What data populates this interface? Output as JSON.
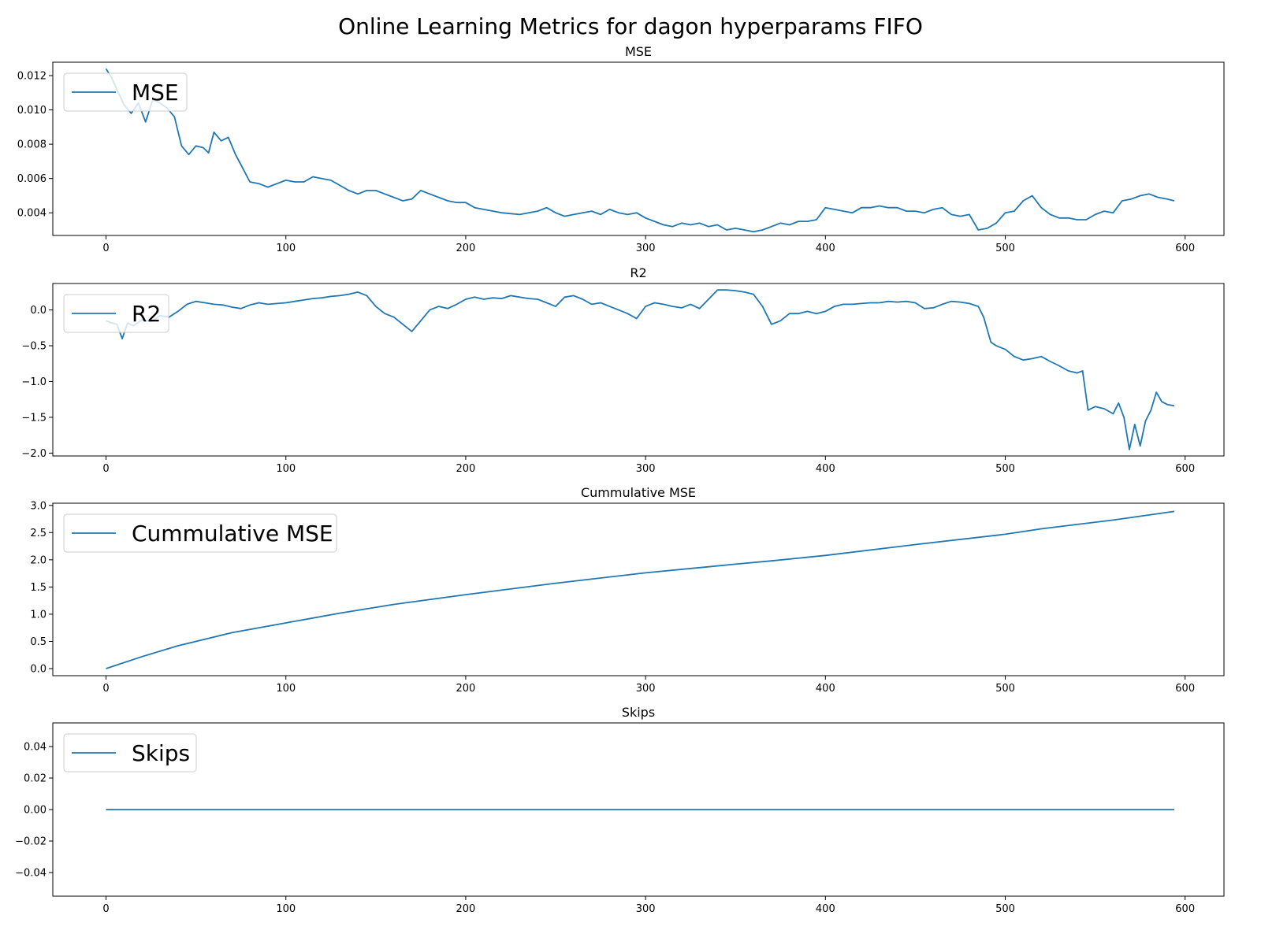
{
  "figure": {
    "title": "Online Learning Metrics for dagon hyperparams FIFO",
    "line_color": "#1f77b4",
    "x_ticks": [
      0,
      100,
      200,
      300,
      400,
      500,
      600
    ],
    "x_range": [
      -29.6,
      621.6
    ]
  },
  "chart_data": [
    {
      "type": "line",
      "title": "MSE",
      "legend": "MSE",
      "legend_position": "upper-left",
      "grid": false,
      "xlim": [
        -29.6,
        621.6
      ],
      "ylim": [
        0.00268,
        0.01278
      ],
      "y_ticks": [
        "0.004",
        "0.006",
        "0.008",
        "0.010",
        "0.012"
      ],
      "y_tick_values": [
        0.004,
        0.006,
        0.008,
        0.01,
        0.012
      ],
      "series": [
        {
          "x": [
            0,
            3,
            6,
            10,
            14,
            18,
            22,
            26,
            30,
            34,
            38,
            42,
            46,
            50,
            54,
            57,
            60,
            64,
            68,
            72,
            76,
            80,
            85,
            90,
            95,
            100,
            105,
            110,
            115,
            120,
            125,
            130,
            135,
            140,
            145,
            150,
            155,
            160,
            165,
            170,
            175,
            180,
            185,
            190,
            195,
            200,
            205,
            210,
            220,
            230,
            240,
            245,
            250,
            255,
            260,
            265,
            270,
            275,
            280,
            285,
            290,
            295,
            300,
            305,
            310,
            315,
            320,
            325,
            330,
            335,
            340,
            345,
            350,
            355,
            360,
            365,
            370,
            375,
            380,
            385,
            390,
            395,
            400,
            405,
            410,
            415,
            420,
            425,
            430,
            435,
            440,
            445,
            450,
            455,
            460,
            465,
            470,
            475,
            480,
            485,
            490,
            495,
            500,
            505,
            510,
            515,
            520,
            525,
            530,
            535,
            540,
            545,
            550,
            555,
            560,
            565,
            570,
            575,
            580,
            585,
            590,
            594
          ],
          "y": [
            0.0124,
            0.0119,
            0.0112,
            0.0103,
            0.0098,
            0.0104,
            0.0093,
            0.0106,
            0.0104,
            0.0101,
            0.0096,
            0.0079,
            0.0074,
            0.0079,
            0.0078,
            0.0075,
            0.0087,
            0.0082,
            0.0084,
            0.0074,
            0.0066,
            0.0058,
            0.0057,
            0.0055,
            0.0057,
            0.0059,
            0.0058,
            0.0058,
            0.0061,
            0.006,
            0.0059,
            0.0056,
            0.0053,
            0.0051,
            0.0053,
            0.0053,
            0.0051,
            0.0049,
            0.0047,
            0.0048,
            0.0053,
            0.0051,
            0.0049,
            0.0047,
            0.0046,
            0.0046,
            0.0043,
            0.0042,
            0.004,
            0.0039,
            0.0041,
            0.0043,
            0.004,
            0.0038,
            0.0039,
            0.004,
            0.0041,
            0.0039,
            0.0042,
            0.004,
            0.0039,
            0.004,
            0.0037,
            0.0035,
            0.0033,
            0.0032,
            0.0034,
            0.0033,
            0.0034,
            0.0032,
            0.0033,
            0.003,
            0.0031,
            0.003,
            0.0029,
            0.003,
            0.0032,
            0.0034,
            0.0033,
            0.0035,
            0.0035,
            0.0036,
            0.0043,
            0.0042,
            0.0041,
            0.004,
            0.0043,
            0.0043,
            0.0044,
            0.0043,
            0.0043,
            0.0041,
            0.0041,
            0.004,
            0.0042,
            0.0043,
            0.0039,
            0.0038,
            0.0039,
            0.003,
            0.0031,
            0.0034,
            0.004,
            0.0041,
            0.0047,
            0.005,
            0.0043,
            0.0039,
            0.0037,
            0.0037,
            0.0036,
            0.0036,
            0.0039,
            0.0041,
            0.004,
            0.0047,
            0.0048,
            0.005,
            0.0051,
            0.0049,
            0.0048,
            0.0047
          ]
        }
      ]
    },
    {
      "type": "line",
      "title": "R2",
      "legend": "R2",
      "legend_position": "upper-left",
      "grid": false,
      "xlim": [
        -29.6,
        621.6
      ],
      "ylim": [
        -2.04,
        0.37
      ],
      "y_ticks": [
        "0.0",
        "−0.5",
        "−1.0",
        "−1.5",
        "−2.0"
      ],
      "y_tick_values": [
        0.0,
        -0.5,
        -1.0,
        -1.5,
        -2.0
      ],
      "series": [
        {
          "x": [
            0,
            3,
            6,
            9,
            12,
            15,
            20,
            25,
            30,
            35,
            40,
            45,
            50,
            55,
            60,
            65,
            70,
            75,
            80,
            85,
            90,
            95,
            100,
            105,
            110,
            115,
            120,
            125,
            130,
            135,
            140,
            145,
            150,
            155,
            160,
            165,
            170,
            175,
            180,
            185,
            190,
            195,
            200,
            205,
            210,
            215,
            220,
            225,
            230,
            235,
            240,
            245,
            250,
            255,
            260,
            265,
            270,
            275,
            280,
            285,
            290,
            295,
            300,
            305,
            310,
            315,
            320,
            325,
            330,
            335,
            340,
            345,
            350,
            355,
            360,
            365,
            370,
            375,
            380,
            385,
            390,
            395,
            400,
            405,
            410,
            415,
            420,
            425,
            430,
            435,
            440,
            445,
            450,
            455,
            460,
            465,
            470,
            475,
            480,
            485,
            488,
            492,
            495,
            500,
            505,
            510,
            515,
            520,
            525,
            530,
            535,
            540,
            543,
            546,
            550,
            555,
            560,
            563,
            566,
            569,
            572,
            575,
            578,
            581,
            584,
            587,
            590,
            594
          ],
          "y": [
            -0.15,
            -0.18,
            -0.2,
            -0.4,
            -0.18,
            -0.22,
            -0.14,
            -0.16,
            -0.08,
            -0.1,
            -0.02,
            0.08,
            0.12,
            0.1,
            0.08,
            0.07,
            0.04,
            0.02,
            0.07,
            0.1,
            0.08,
            0.09,
            0.1,
            0.12,
            0.14,
            0.16,
            0.17,
            0.19,
            0.2,
            0.22,
            0.25,
            0.2,
            0.05,
            -0.05,
            -0.1,
            -0.2,
            -0.3,
            -0.15,
            0.0,
            0.05,
            0.02,
            0.08,
            0.15,
            0.18,
            0.15,
            0.17,
            0.16,
            0.2,
            0.18,
            0.16,
            0.15,
            0.1,
            0.05,
            0.18,
            0.2,
            0.15,
            0.08,
            0.1,
            0.05,
            0.0,
            -0.05,
            -0.12,
            0.05,
            0.1,
            0.08,
            0.05,
            0.03,
            0.08,
            0.02,
            0.15,
            0.28,
            0.28,
            0.27,
            0.25,
            0.22,
            0.05,
            -0.2,
            -0.15,
            -0.05,
            -0.05,
            -0.02,
            -0.05,
            -0.02,
            0.05,
            0.08,
            0.08,
            0.09,
            0.1,
            0.1,
            0.12,
            0.11,
            0.12,
            0.1,
            0.02,
            0.03,
            0.08,
            0.12,
            0.11,
            0.09,
            0.05,
            -0.1,
            -0.45,
            -0.5,
            -0.55,
            -0.65,
            -0.7,
            -0.68,
            -0.65,
            -0.72,
            -0.78,
            -0.85,
            -0.88,
            -0.85,
            -1.4,
            -1.35,
            -1.38,
            -1.45,
            -1.3,
            -1.5,
            -1.95,
            -1.6,
            -1.9,
            -1.55,
            -1.4,
            -1.15,
            -1.28,
            -1.32,
            -1.34
          ]
        }
      ]
    },
    {
      "type": "line",
      "title": "Cummulative MSE",
      "legend": "Cummulative MSE",
      "legend_position": "upper-left",
      "grid": false,
      "xlim": [
        -29.6,
        621.6
      ],
      "ylim": [
        -0.13,
        3.04
      ],
      "y_ticks": [
        "0.0",
        "0.5",
        "1.0",
        "1.5",
        "2.0",
        "2.5",
        "3.0"
      ],
      "y_tick_values": [
        0.0,
        0.5,
        1.0,
        1.5,
        2.0,
        2.5,
        3.0
      ],
      "series": [
        {
          "x": [
            0,
            20,
            40,
            70,
            100,
            130,
            160,
            200,
            250,
            300,
            350,
            370,
            400,
            450,
            500,
            520,
            560,
            594
          ],
          "y": [
            0.0,
            0.22,
            0.42,
            0.66,
            0.84,
            1.02,
            1.18,
            1.36,
            1.57,
            1.76,
            1.92,
            1.98,
            2.08,
            2.28,
            2.47,
            2.57,
            2.73,
            2.89
          ]
        }
      ]
    },
    {
      "type": "line",
      "title": "Skips",
      "legend": "Skips",
      "legend_position": "upper-left",
      "grid": false,
      "xlim": [
        -29.6,
        621.6
      ],
      "ylim": [
        -0.055,
        0.055
      ],
      "y_ticks": [
        "0.04",
        "0.02",
        "0.00",
        "−0.02",
        "−0.04"
      ],
      "y_tick_values": [
        0.04,
        0.02,
        0.0,
        -0.02,
        -0.04
      ],
      "series": [
        {
          "x": [
            0,
            594
          ],
          "y": [
            0,
            0
          ]
        }
      ]
    }
  ]
}
